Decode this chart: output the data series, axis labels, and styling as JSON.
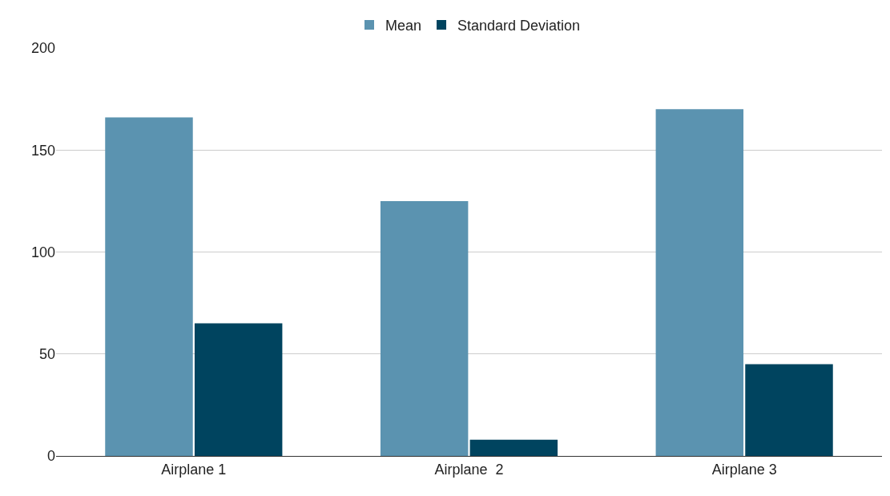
{
  "chart_data": {
    "type": "bar",
    "categories": [
      "Airplane 1",
      "Airplane  2",
      "Airplane 3"
    ],
    "series": [
      {
        "name": "Mean",
        "color": "#5b93b0",
        "values": [
          166,
          125,
          170
        ]
      },
      {
        "name": "Standard Deviation",
        "color": "#00445f",
        "values": [
          65,
          8,
          45
        ]
      }
    ],
    "ylim": [
      0,
      200
    ],
    "yticks": [
      0,
      50,
      100,
      150,
      200
    ],
    "grid": "y",
    "legend": "top"
  }
}
